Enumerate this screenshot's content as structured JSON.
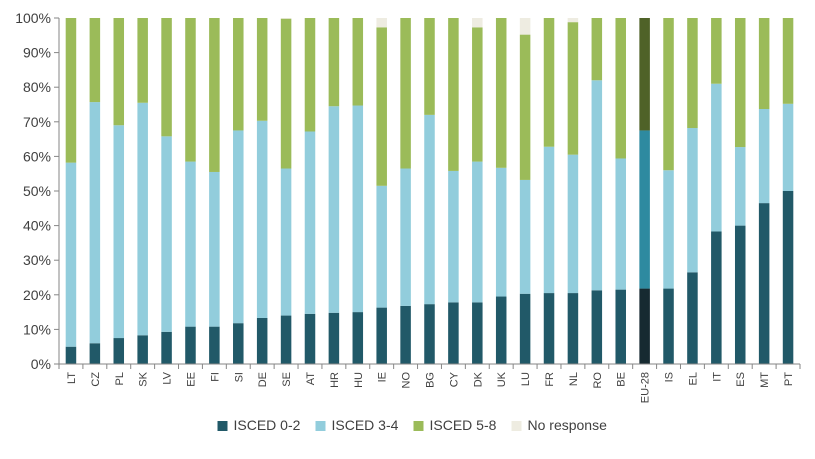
{
  "chart_data": {
    "type": "bar",
    "stacked": true,
    "percent": true,
    "categories": [
      "LT",
      "CZ",
      "PL",
      "SK",
      "LV",
      "EE",
      "FI",
      "SI",
      "DE",
      "SE",
      "AT",
      "HR",
      "HU",
      "IE",
      "NO",
      "BG",
      "CY",
      "DK",
      "UK",
      "LU",
      "FR",
      "NL",
      "RO",
      "BE",
      "EU-28",
      "IS",
      "EL",
      "IT",
      "ES",
      "MT",
      "PT"
    ],
    "highlight_category": "EU-28",
    "series": [
      {
        "name": "ISCED 0-2",
        "color": "#215968",
        "highlight_color": "#162a31",
        "values": [
          5,
          6,
          7.5,
          8.3,
          9.3,
          10.8,
          10.8,
          11.8,
          13.3,
          14,
          14.5,
          14.8,
          15,
          16.3,
          16.8,
          17.3,
          17.8,
          17.8,
          19.5,
          20.3,
          20.5,
          20.5,
          21.3,
          21.5,
          21.8,
          21.8,
          26.5,
          38.3,
          40,
          46.5,
          50
        ]
      },
      {
        "name": "ISCED 3-4",
        "color": "#92cddc",
        "highlight_color": "#2e8aa0",
        "values": [
          53.2,
          69.7,
          61.5,
          67.2,
          56.5,
          47.7,
          44.7,
          55.7,
          57,
          42.5,
          52.7,
          59.7,
          59.7,
          35.2,
          39.7,
          54.7,
          38,
          40.7,
          37.2,
          32.9,
          42.3,
          40,
          60.7,
          37.9,
          45.7,
          34.2,
          41.7,
          42.7,
          22.7,
          27.2,
          25.2
        ]
      },
      {
        "name": "ISCED 5-8",
        "color": "#9bbb59",
        "highlight_color": "#4f6228",
        "values": [
          41.8,
          24.3,
          31,
          24.5,
          34.2,
          41.5,
          44.5,
          32.5,
          29.7,
          43.3,
          32.8,
          25.5,
          25.3,
          45.8,
          43.5,
          28,
          44.2,
          38.8,
          43.3,
          42,
          37.2,
          38.3,
          18,
          40.6,
          32.5,
          44,
          31.8,
          19,
          37.3,
          26.3,
          24.8
        ]
      },
      {
        "name": "No response",
        "color": "#eeece1",
        "highlight_color": "#eeece1",
        "values": [
          0,
          0,
          0,
          0,
          0,
          0,
          0,
          0,
          0,
          0.2,
          0,
          0,
          0,
          2.7,
          0,
          0,
          0,
          2.7,
          0,
          4.8,
          0,
          1.2,
          0,
          0,
          0,
          0,
          0,
          0,
          0,
          0,
          0
        ]
      }
    ],
    "y_ticks": [
      "0%",
      "10%",
      "20%",
      "30%",
      "40%",
      "50%",
      "60%",
      "70%",
      "80%",
      "90%",
      "100%"
    ],
    "ylim": [
      0,
      100
    ],
    "xlabel": "",
    "ylabel": "",
    "title": "",
    "legend_position": "bottom",
    "grid": false
  }
}
